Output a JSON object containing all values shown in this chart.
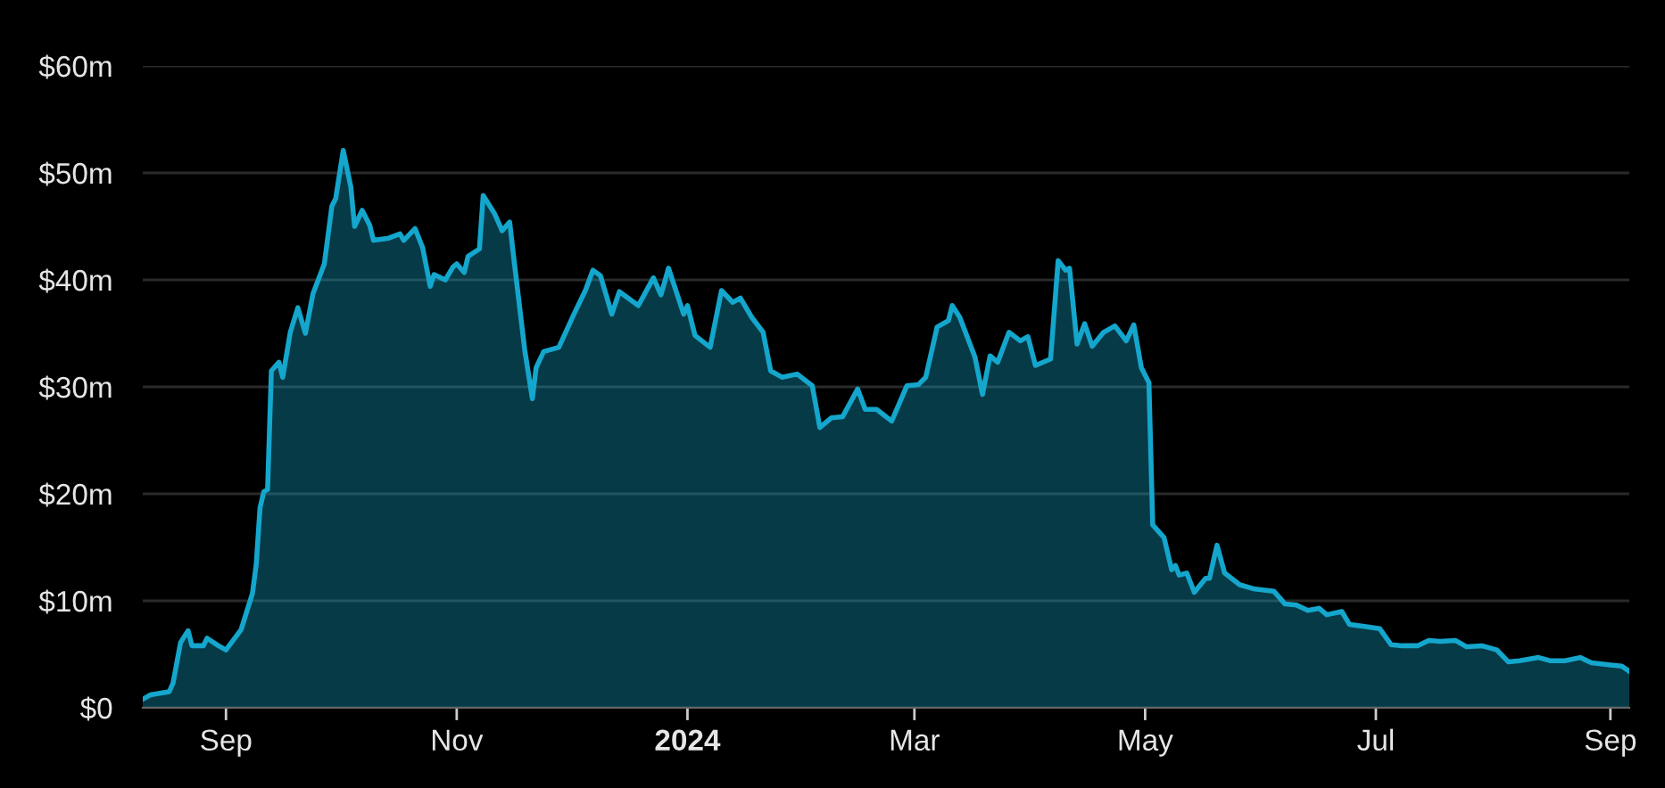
{
  "chart_data": {
    "type": "area",
    "x": [
      "2023-08-10",
      "2023-08-12",
      "2023-08-17",
      "2023-08-18",
      "2023-08-20",
      "2023-08-22",
      "2023-08-23",
      "2023-08-26",
      "2023-08-27",
      "2023-08-30",
      "2023-09-01",
      "2023-09-05",
      "2023-09-08",
      "2023-09-09",
      "2023-09-10",
      "2023-09-11",
      "2023-09-12",
      "2023-09-13",
      "2023-09-15",
      "2023-09-16",
      "2023-09-18",
      "2023-09-20",
      "2023-09-22",
      "2023-09-24",
      "2023-09-27",
      "2023-09-29",
      "2023-09-30",
      "2023-10-02",
      "2023-10-04",
      "2023-10-05",
      "2023-10-07",
      "2023-10-09",
      "2023-10-10",
      "2023-10-14",
      "2023-10-17",
      "2023-10-18",
      "2023-10-21",
      "2023-10-23",
      "2023-10-25",
      "2023-10-26",
      "2023-10-29",
      "2023-10-31",
      "2023-11-01",
      "2023-11-03",
      "2023-11-04",
      "2023-11-07",
      "2023-11-08",
      "2023-11-11",
      "2023-11-13",
      "2023-11-15",
      "2023-11-16",
      "2023-11-19",
      "2023-11-21",
      "2023-11-22",
      "2023-11-24",
      "2023-11-28",
      "2023-12-02",
      "2023-12-05",
      "2023-12-07",
      "2023-12-09",
      "2023-12-12",
      "2023-12-14",
      "2023-12-19",
      "2023-12-23",
      "2023-12-25",
      "2023-12-27",
      "2023-12-31",
      "2024-01-01",
      "2024-01-03",
      "2024-01-07",
      "2024-01-10",
      "2024-01-13",
      "2024-01-15",
      "2024-01-18",
      "2024-01-21",
      "2024-01-23",
      "2024-01-26",
      "2024-01-30",
      "2024-02-03",
      "2024-02-05",
      "2024-02-08",
      "2024-02-11",
      "2024-02-15",
      "2024-02-17",
      "2024-02-20",
      "2024-02-24",
      "2024-02-28",
      "2024-03-02",
      "2024-03-04",
      "2024-03-07",
      "2024-03-10",
      "2024-03-11",
      "2024-03-13",
      "2024-03-17",
      "2024-03-19",
      "2024-03-21",
      "2024-03-23",
      "2024-03-26",
      "2024-03-29",
      "2024-03-31",
      "2024-04-02",
      "2024-04-06",
      "2024-04-08",
      "2024-04-10",
      "2024-04-11",
      "2024-04-13",
      "2024-04-15",
      "2024-04-17",
      "2024-04-20",
      "2024-04-23",
      "2024-04-26",
      "2024-04-28",
      "2024-04-30",
      "2024-05-02",
      "2024-05-03",
      "2024-05-06",
      "2024-05-08",
      "2024-05-09",
      "2024-05-10",
      "2024-05-12",
      "2024-05-14",
      "2024-05-17",
      "2024-05-18",
      "2024-05-20",
      "2024-05-22",
      "2024-05-26",
      "2024-05-30",
      "2024-06-04",
      "2024-06-07",
      "2024-06-10",
      "2024-06-13",
      "2024-06-16",
      "2024-06-18",
      "2024-06-22",
      "2024-06-24",
      "2024-06-28",
      "2024-07-02",
      "2024-07-05",
      "2024-07-08",
      "2024-07-12",
      "2024-07-15",
      "2024-07-18",
      "2024-07-22",
      "2024-07-25",
      "2024-07-29",
      "2024-08-02",
      "2024-08-05",
      "2024-08-08",
      "2024-08-13",
      "2024-08-16",
      "2024-08-20",
      "2024-08-24",
      "2024-08-27",
      "2024-09-01",
      "2024-09-04",
      "2024-09-06"
    ],
    "series": [
      {
        "color": "#14a6cc",
        "values": [
          0.8,
          1.2,
          1.5,
          2.3,
          6.1,
          7.2,
          5.8,
          5.8,
          6.5,
          5.8,
          5.4,
          7.3,
          10.7,
          13.4,
          18.7,
          20.2,
          20.4,
          31.5,
          32.3,
          30.9,
          35.1,
          37.4,
          35.0,
          38.7,
          41.5,
          46.9,
          47.6,
          52.1,
          48.7,
          45.0,
          46.5,
          45.1,
          43.7,
          43.9,
          44.3,
          43.7,
          44.8,
          43.0,
          39.4,
          40.5,
          40.0,
          41.2,
          41.5,
          40.7,
          42.2,
          42.9,
          47.9,
          46.2,
          44.6,
          45.4,
          42.3,
          33.4,
          28.9,
          31.8,
          33.3,
          33.7,
          36.8,
          39.0,
          40.9,
          40.4,
          36.8,
          38.9,
          37.6,
          40.2,
          38.6,
          41.1,
          36.8,
          37.6,
          34.8,
          33.7,
          39.0,
          37.9,
          38.3,
          36.5,
          35.1,
          31.5,
          30.9,
          31.2,
          30.1,
          26.2,
          27.1,
          27.2,
          29.8,
          27.9,
          27.9,
          26.8,
          30.1,
          30.2,
          30.9,
          35.6,
          36.2,
          37.6,
          36.5,
          32.8,
          29.3,
          32.9,
          32.3,
          35.1,
          34.3,
          34.7,
          32.0,
          32.6,
          41.8,
          40.9,
          41.1,
          34.0,
          35.9,
          33.8,
          35.1,
          35.7,
          34.3,
          35.8,
          31.8,
          30.4,
          17.1,
          15.9,
          12.9,
          13.3,
          12.4,
          12.6,
          10.8,
          12.1,
          12.1,
          15.2,
          12.6,
          11.5,
          11.1,
          10.9,
          9.7,
          9.6,
          9.1,
          9.3,
          8.7,
          9.0,
          7.8,
          7.6,
          7.4,
          5.9,
          5.8,
          5.8,
          6.3,
          6.2,
          6.3,
          5.7,
          5.8,
          5.4,
          4.3,
          4.4,
          4.7,
          4.4,
          4.4,
          4.7,
          4.2,
          4.0,
          3.9,
          3.4
        ]
      }
    ],
    "xlim": [
      "2023-08-10",
      "2024-09-06"
    ],
    "xticks": [
      {
        "value": "2023-09-01",
        "label": "Sep"
      },
      {
        "value": "2023-11-01",
        "label": "Nov"
      },
      {
        "value": "2024-01-01",
        "label": "2024"
      },
      {
        "value": "2024-03-01",
        "label": "Mar"
      },
      {
        "value": "2024-05-01",
        "label": "May"
      },
      {
        "value": "2024-07-01",
        "label": "Jul"
      },
      {
        "value": "2024-09-01",
        "label": "Sep"
      }
    ],
    "ylim": [
      0,
      60
    ],
    "yticks": [
      {
        "value": 0,
        "label": "$0"
      },
      {
        "value": 10,
        "label": "$10m"
      },
      {
        "value": 20,
        "label": "$20m"
      },
      {
        "value": 30,
        "label": "$30m"
      },
      {
        "value": 40,
        "label": "$40m"
      },
      {
        "value": 50,
        "label": "$50m"
      },
      {
        "value": 60,
        "label": "$60m"
      }
    ],
    "grid": "y"
  }
}
